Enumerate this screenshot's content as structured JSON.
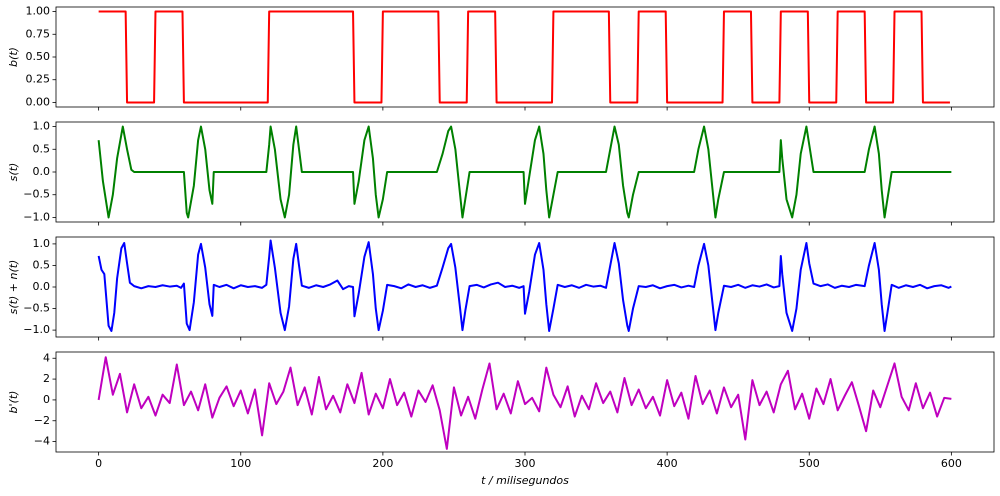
{
  "chart_data": [
    {
      "type": "line",
      "ylabel": "b(t)",
      "x": [
        0,
        19,
        20,
        39,
        40,
        59,
        60,
        79,
        80,
        99,
        100,
        119,
        120,
        139,
        140,
        159,
        160,
        179,
        180,
        199,
        200,
        219,
        220,
        239,
        240,
        259,
        260,
        279,
        280,
        299,
        300,
        319,
        320,
        339,
        340,
        359,
        360,
        379,
        380,
        399,
        400,
        419,
        420,
        439,
        440,
        459,
        460,
        479,
        480,
        499,
        500,
        519,
        520,
        539,
        540,
        559,
        560,
        579,
        580,
        599
      ],
      "series": [
        {
          "color": "#ff0000",
          "values": [
            1,
            1,
            0,
            0,
            1,
            1,
            0,
            0,
            0,
            0,
            0,
            0,
            1,
            1,
            1,
            1,
            1,
            1,
            0,
            0,
            1,
            1,
            1,
            1,
            0,
            0,
            1,
            1,
            0,
            0,
            0,
            0,
            1,
            1,
            1,
            1,
            0,
            0,
            1,
            1,
            0,
            0,
            0,
            0,
            1,
            1,
            0,
            0,
            1,
            1,
            0,
            0,
            1,
            1,
            0,
            0,
            1,
            1,
            0,
            0
          ]
        }
      ],
      "xlim": [
        -30,
        630
      ],
      "ylim": [
        -0.05,
        1.05
      ],
      "yticks": [
        {
          "value": 0,
          "label": "0.00"
        },
        {
          "value": 0.25,
          "label": "0.25"
        },
        {
          "value": 0.5,
          "label": "0.50"
        },
        {
          "value": 0.75,
          "label": "0.75"
        },
        {
          "value": 1,
          "label": "1.00"
        }
      ]
    },
    {
      "type": "line",
      "ylabel": "s(t)",
      "x": [
        0,
        3,
        7,
        10,
        13,
        17,
        20,
        23,
        25,
        60,
        62,
        63,
        67,
        70,
        72,
        75,
        78,
        80,
        81,
        118,
        120,
        121,
        124,
        128,
        131,
        134,
        137,
        139,
        141,
        143,
        179,
        180,
        183,
        187,
        190,
        193,
        195,
        197,
        200,
        203,
        238,
        242,
        246,
        248,
        251,
        254,
        256,
        258,
        261,
        299,
        300,
        303,
        307,
        310,
        313,
        315,
        317,
        320,
        323,
        357,
        360,
        363,
        366,
        369,
        372,
        373,
        376,
        380,
        419,
        422,
        426,
        429,
        432,
        434,
        436,
        440,
        479,
        480,
        481,
        484,
        488,
        491,
        494,
        498,
        500,
        503,
        539,
        542,
        546,
        549,
        551,
        553,
        555,
        558,
        600
      ],
      "series": [
        {
          "color": "#008000",
          "values": [
            0.7,
            -0.2,
            -1,
            -0.5,
            0.3,
            1,
            0.5,
            0.05,
            0,
            0,
            -0.9,
            -1,
            -0.3,
            0.7,
            1,
            0.5,
            -0.4,
            -0.7,
            0,
            0,
            0.6,
            1,
            0.5,
            -0.6,
            -1,
            -0.5,
            0.6,
            1,
            0.5,
            0,
            0,
            -0.7,
            -0.2,
            0.7,
            1,
            0.3,
            -0.5,
            -1,
            -0.6,
            0,
            0,
            0.4,
            0.9,
            1,
            0.5,
            -0.4,
            -1,
            -0.6,
            0,
            0,
            -0.7,
            -0.1,
            0.7,
            1,
            0.4,
            -0.4,
            -1,
            -0.5,
            0,
            0,
            0.5,
            1,
            0.6,
            -0.3,
            -0.9,
            -1,
            -0.5,
            0,
            0,
            0.5,
            1,
            0.5,
            -0.4,
            -1,
            -0.6,
            0,
            0,
            0.7,
            0.3,
            -0.6,
            -1,
            -0.5,
            0.4,
            1,
            0.6,
            0,
            0,
            0.5,
            1,
            0.4,
            -0.4,
            -1,
            -0.6,
            0,
            0
          ]
        }
      ],
      "xlim": [
        -30,
        630
      ],
      "ylim": [
        -1.1,
        1.1
      ],
      "yticks": [
        {
          "value": -1,
          "label": "−1.0"
        },
        {
          "value": -0.5,
          "label": "−0.5"
        },
        {
          "value": 0,
          "label": "0.0"
        },
        {
          "value": 0.5,
          "label": "0.5"
        },
        {
          "value": 1,
          "label": "1.0"
        }
      ]
    },
    {
      "type": "line",
      "ylabel": "s(t) + n(t)",
      "x": [
        0,
        2,
        4,
        7,
        9,
        11,
        13,
        16,
        18,
        20,
        22,
        25,
        30,
        35,
        40,
        45,
        50,
        55,
        58,
        60,
        62,
        64,
        67,
        70,
        72,
        75,
        78,
        80,
        81,
        85,
        90,
        95,
        100,
        105,
        110,
        115,
        118,
        120,
        121,
        124,
        128,
        131,
        134,
        137,
        139,
        141,
        143,
        148,
        153,
        158,
        163,
        168,
        172,
        176,
        179,
        180,
        183,
        187,
        190,
        193,
        195,
        197,
        200,
        203,
        208,
        213,
        218,
        223,
        228,
        233,
        238,
        242,
        246,
        248,
        251,
        254,
        256,
        258,
        261,
        266,
        271,
        276,
        281,
        286,
        291,
        296,
        299,
        300,
        303,
        307,
        310,
        313,
        315,
        317,
        320,
        323,
        328,
        333,
        338,
        343,
        348,
        353,
        357,
        360,
        363,
        366,
        369,
        372,
        373,
        376,
        380,
        385,
        390,
        395,
        400,
        405,
        410,
        415,
        419,
        422,
        426,
        429,
        432,
        434,
        436,
        440,
        445,
        450,
        455,
        460,
        465,
        470,
        475,
        479,
        480,
        481,
        484,
        488,
        491,
        494,
        498,
        500,
        503,
        508,
        513,
        518,
        523,
        528,
        533,
        539,
        542,
        546,
        549,
        551,
        553,
        555,
        558,
        563,
        568,
        573,
        578,
        583,
        588,
        593,
        598,
        600
      ],
      "series": [
        {
          "color": "#0000ff",
          "values": [
            0.72,
            0.4,
            0.3,
            -0.9,
            -1.02,
            -0.6,
            0.2,
            0.9,
            1.02,
            0.55,
            0.1,
            0.02,
            -0.03,
            0.02,
            0,
            0.04,
            0.01,
            0.03,
            -0.02,
            0.08,
            -0.85,
            -1,
            -0.35,
            0.75,
            1,
            0.45,
            -0.4,
            -0.67,
            0.05,
            0,
            0.05,
            -0.03,
            0.04,
            0,
            0.02,
            -0.02,
            0.05,
            0.7,
            1.08,
            0.45,
            -0.6,
            -1,
            -0.45,
            0.65,
            1,
            0.5,
            0.03,
            -0.02,
            0.04,
            0,
            0.06,
            0.15,
            -0.05,
            0.02,
            0,
            -0.68,
            -0.15,
            0.7,
            1.04,
            0.3,
            -0.5,
            -1,
            -0.55,
            0.05,
            0.02,
            -0.03,
            0.06,
            0,
            0.04,
            -0.02,
            0.03,
            0.45,
            0.9,
            1,
            0.45,
            -0.4,
            -1,
            -0.55,
            0.02,
            0.05,
            -0.01,
            0.06,
            0.1,
            0,
            0.03,
            -0.02,
            0.02,
            -0.62,
            -0.1,
            0.75,
            1.02,
            0.4,
            -0.4,
            -1.02,
            -0.5,
            0.05,
            0,
            0.04,
            -0.02,
            0.05,
            0.01,
            0.03,
            -0.02,
            0.5,
            1.02,
            0.55,
            -0.3,
            -0.9,
            -1.02,
            -0.5,
            0.02,
            0,
            0.04,
            -0.03,
            0.02,
            0.05,
            -0.01,
            0.03,
            0,
            0.5,
            1,
            0.5,
            -0.4,
            -1,
            -0.6,
            0.03,
            0,
            0.05,
            -0.02,
            0.04,
            0.01,
            0.06,
            -0.01,
            0.02,
            0.72,
            0.3,
            -0.6,
            -1.02,
            -0.5,
            0.4,
            1.02,
            0.55,
            0.08,
            0.02,
            0.06,
            -0.02,
            0.03,
            0,
            0.05,
            0.02,
            0.5,
            1.02,
            0.4,
            -0.4,
            -1.02,
            -0.6,
            0.05,
            -0.02,
            0.04,
            0,
            0.05,
            -0.03,
            0.02,
            0.04,
            -0.02,
            0.01
          ]
        }
      ],
      "xlim": [
        -30,
        630
      ],
      "ylim": [
        -1.16,
        1.16
      ],
      "yticks": [
        {
          "value": -1,
          "label": "−1.0"
        },
        {
          "value": -0.5,
          "label": "−0.5"
        },
        {
          "value": 0,
          "label": "0.0"
        },
        {
          "value": 0.5,
          "label": "0.5"
        },
        {
          "value": 1,
          "label": "1.0"
        }
      ]
    },
    {
      "type": "line",
      "ylabel": "b'(t)",
      "xlabel": "t / milisegundos",
      "x": [
        0,
        5,
        10,
        15,
        20,
        25,
        30,
        35,
        40,
        45,
        50,
        55,
        60,
        65,
        70,
        75,
        80,
        85,
        90,
        95,
        100,
        105,
        110,
        115,
        120,
        125,
        130,
        135,
        140,
        145,
        150,
        155,
        160,
        165,
        170,
        175,
        180,
        185,
        190,
        195,
        200,
        205,
        210,
        215,
        220,
        225,
        230,
        235,
        240,
        245,
        250,
        255,
        260,
        265,
        270,
        275,
        280,
        285,
        290,
        295,
        300,
        305,
        310,
        315,
        320,
        325,
        330,
        335,
        340,
        345,
        350,
        355,
        360,
        365,
        370,
        375,
        380,
        385,
        390,
        395,
        400,
        405,
        410,
        415,
        420,
        425,
        430,
        435,
        440,
        445,
        450,
        455,
        460,
        465,
        470,
        475,
        480,
        485,
        490,
        495,
        500,
        505,
        510,
        515,
        520,
        525,
        530,
        535,
        540,
        545,
        550,
        555,
        560,
        565,
        570,
        575,
        580,
        585,
        590,
        595,
        600
      ],
      "series": [
        {
          "color": "#bf00bf",
          "values": [
            0,
            4.1,
            0.5,
            2.5,
            -1.2,
            1.5,
            -0.8,
            0.3,
            -1.5,
            0.5,
            -0.3,
            3.4,
            -0.5,
            0.8,
            -1,
            1.5,
            -1.7,
            0.2,
            1.3,
            -0.6,
            0.9,
            -1.3,
            1,
            -3.4,
            1.6,
            -0.4,
            0.8,
            3.1,
            -0.5,
            1.2,
            -1.4,
            2.2,
            -0.9,
            0.4,
            -1.2,
            1.5,
            -0.3,
            2.6,
            -1.4,
            0.6,
            -0.8,
            2,
            -0.5,
            0.7,
            -1.6,
            0.9,
            -0.2,
            1.4,
            -1,
            -4.7,
            1.2,
            -1.5,
            0.3,
            -1.8,
            1,
            3.5,
            -0.9,
            0.6,
            -1.3,
            1.8,
            -0.4,
            0.2,
            -1.1,
            3.1,
            0.5,
            -0.7,
            1.3,
            -1.6,
            0.4,
            -0.9,
            1.6,
            -0.3,
            0.8,
            -1.2,
            2.1,
            -0.5,
            1,
            -0.8,
            0.3,
            -1.5,
            1.9,
            -0.6,
            0.7,
            -1.8,
            2.3,
            -0.4,
            0.9,
            -1.3,
            1.2,
            -0.7,
            0.5,
            -3.8,
            1.9,
            -0.5,
            0.8,
            -1.2,
            1.5,
            2.8,
            -0.9,
            0.6,
            -1.8,
            1.1,
            -0.4,
            2,
            -1,
            0.4,
            1.7,
            -0.6,
            -3,
            0.9,
            -0.7,
            1.4,
            3.5,
            0.3,
            -1,
            1.6,
            -0.8,
            0.7,
            -1.6,
            0.2,
            0.1
          ]
        }
      ],
      "xlim": [
        -30,
        630
      ],
      "ylim": [
        -5.0,
        4.6
      ],
      "yticks": [
        {
          "value": -4,
          "label": "−4"
        },
        {
          "value": -2,
          "label": "−2"
        },
        0,
        2,
        4
      ],
      "xticks": [
        0,
        100,
        200,
        300,
        400,
        500,
        600
      ]
    }
  ]
}
